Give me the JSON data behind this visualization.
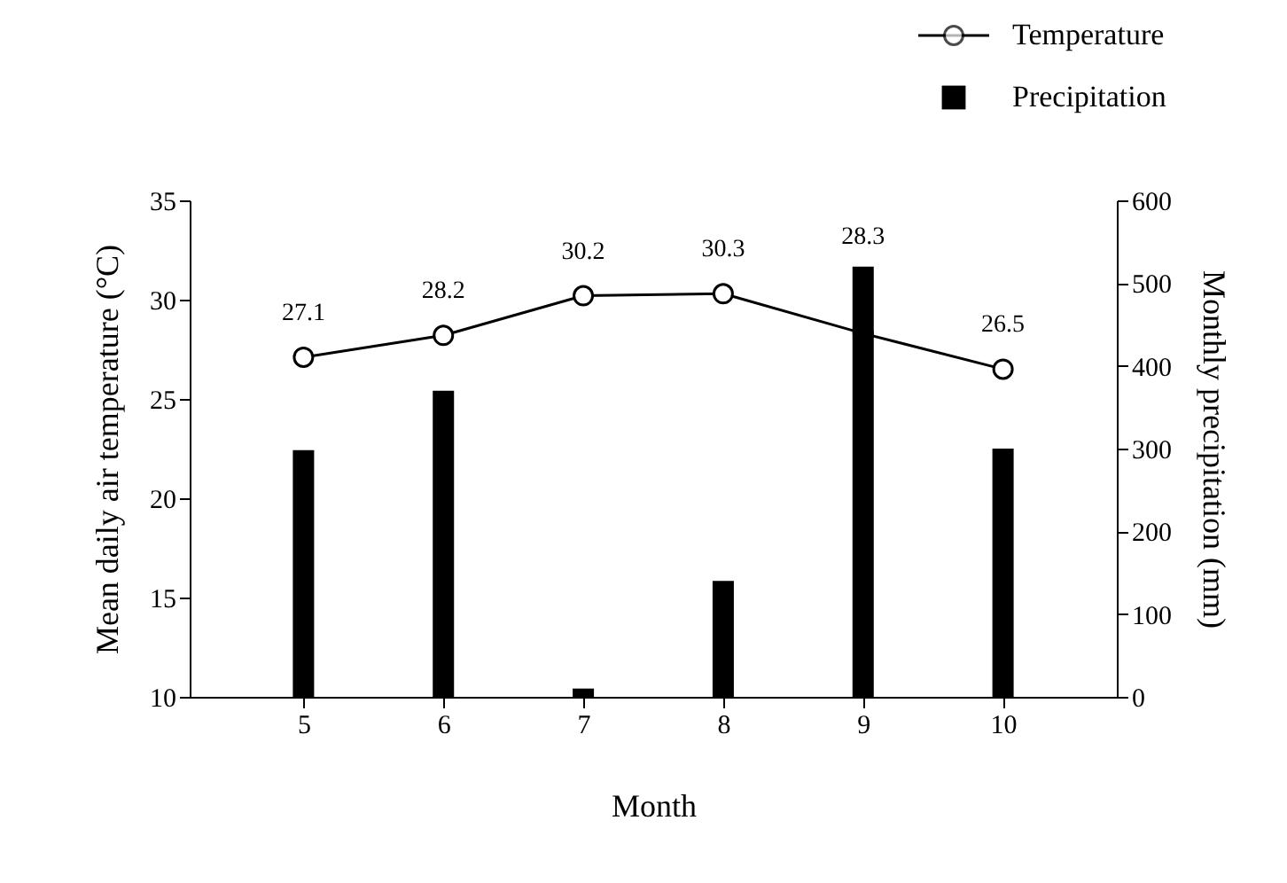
{
  "chart_data": {
    "type": "bar",
    "xlabel": "Month",
    "ylabel": "Mean daily air temperature (°C)",
    "y2label": "Monthly precipitation (mm)",
    "categories": [
      "5",
      "6",
      "7",
      "8",
      "9",
      "10"
    ],
    "series": [
      {
        "name": "Temperature",
        "type": "line",
        "color": "#000000",
        "marker": "circle",
        "values": [
          27.1,
          28.2,
          30.2,
          30.3,
          28.3,
          26.5
        ],
        "value_labels": [
          "27.1",
          "28.2",
          "30.2",
          "30.3",
          "28.3",
          "26.5"
        ]
      },
      {
        "name": "Precipitation",
        "axis": "y2",
        "color": "#000000",
        "values": [
          298,
          370,
          10,
          140,
          520,
          300
        ]
      }
    ],
    "ylim": [
      10,
      35
    ],
    "yticks": [
      10,
      15,
      20,
      25,
      30,
      35
    ],
    "y2lim": [
      0,
      600
    ],
    "y2ticks": [
      0,
      100,
      200,
      300,
      400,
      500,
      600
    ],
    "legend": "top right",
    "grid": false
  }
}
